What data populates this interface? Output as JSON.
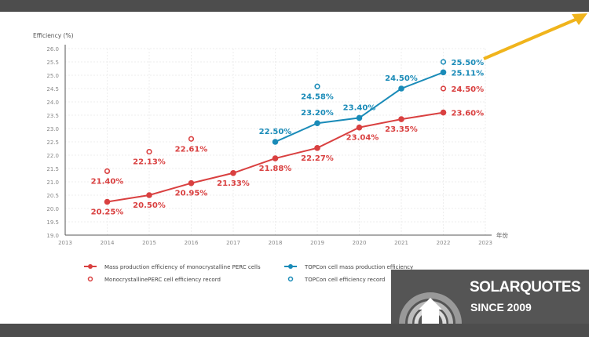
{
  "chart_data": {
    "type": "line",
    "ylabel": "Efficiency (%)",
    "xlabel": "年份",
    "xlim": [
      2013,
      2023
    ],
    "ylim": [
      19.0,
      26.0
    ],
    "xticks": [
      "2013",
      "2014",
      "2015",
      "2016",
      "2017",
      "2018",
      "2019",
      "2020",
      "2021",
      "2022",
      "2023"
    ],
    "yticks": [
      "19.0",
      "19.5",
      "20.0",
      "20.5",
      "21.0",
      "21.5",
      "22.0",
      "22.5",
      "23.0",
      "23.5",
      "24.0",
      "24.5",
      "25.0",
      "25.5",
      "26.0"
    ],
    "grid": true,
    "legend_placement": "bottom",
    "series": [
      {
        "name": "Mass production efficiency of monocrystalline PERC cells",
        "style": "line-filled",
        "color": "#d94040",
        "x": [
          2014,
          2015,
          2016,
          2017,
          2018,
          2019,
          2020,
          2021,
          2022
        ],
        "values": [
          20.25,
          20.5,
          20.95,
          21.33,
          21.88,
          22.27,
          23.04,
          23.35,
          23.6
        ],
        "labels": [
          "20.25%",
          "20.50%",
          "20.95%",
          "21.33%",
          "21.88%",
          "22.27%",
          "23.04%",
          "23.35%",
          "23.60%"
        ]
      },
      {
        "name": "MonocrystallinePERC cell efficiency record",
        "style": "open-marker",
        "color": "#d94040",
        "x": [
          2014,
          2015,
          2016,
          2022
        ],
        "values": [
          21.4,
          22.13,
          22.61,
          24.5
        ],
        "labels": [
          "21.40%",
          "22.13%",
          "22.61%",
          "24.50%"
        ]
      },
      {
        "name": "TOPCon cell mass production efficiency",
        "style": "line-filled",
        "color": "#1a8bb8",
        "x": [
          2018,
          2019,
          2020,
          2021,
          2022
        ],
        "values": [
          22.5,
          23.2,
          23.4,
          24.5,
          25.11
        ],
        "labels": [
          "22.50%",
          "23.20%",
          "23.40%",
          "24.50%",
          "25.11%"
        ]
      },
      {
        "name": "TOPCon cell efficiency record",
        "style": "open-marker",
        "color": "#1a8bb8",
        "x": [
          2019,
          2022
        ],
        "values": [
          24.58,
          25.5
        ],
        "labels": [
          "24.58%",
          "25.50%"
        ]
      }
    ]
  },
  "annotation": {
    "arrow_color": "#f0b41c"
  },
  "logo": {
    "name": "SOLARQUOTES",
    "tagline": "SINCE 2009"
  }
}
